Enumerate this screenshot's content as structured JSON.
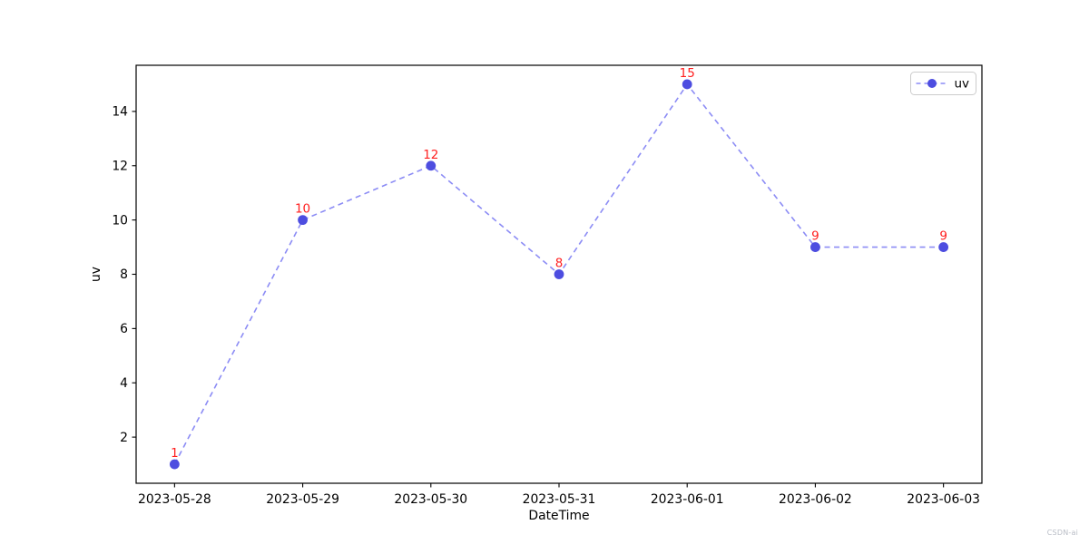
{
  "figure": {
    "watermark": "CSDN-ai"
  },
  "chart_data": {
    "type": "line",
    "title": "",
    "xlabel": "DateTime",
    "ylabel": "uv",
    "categories": [
      "2023-05-28",
      "2023-05-29",
      "2023-05-30",
      "2023-05-31",
      "2023-06-01",
      "2023-06-02",
      "2023-06-03"
    ],
    "series": [
      {
        "name": "uv",
        "values": [
          1,
          10,
          12,
          8,
          15,
          9,
          9
        ]
      }
    ],
    "value_labels": [
      "1",
      "10",
      "12",
      "8",
      "15",
      "9",
      "9"
    ],
    "yticks": [
      2,
      4,
      6,
      8,
      10,
      12,
      14
    ],
    "ylim": [
      0.3,
      15.7
    ],
    "xlim_index": [
      -0.3,
      6.3
    ],
    "grid": false,
    "legend_position": "upper right",
    "style": {
      "line_color": "#8c8cf5",
      "line_dash": "dashed",
      "marker": "circle",
      "marker_color": "#4d4de0",
      "value_label_color": "#ff2020",
      "axis_color": "#000000",
      "legend_border_color": "#cccccc",
      "watermark_color": "#b9bdc6"
    }
  }
}
